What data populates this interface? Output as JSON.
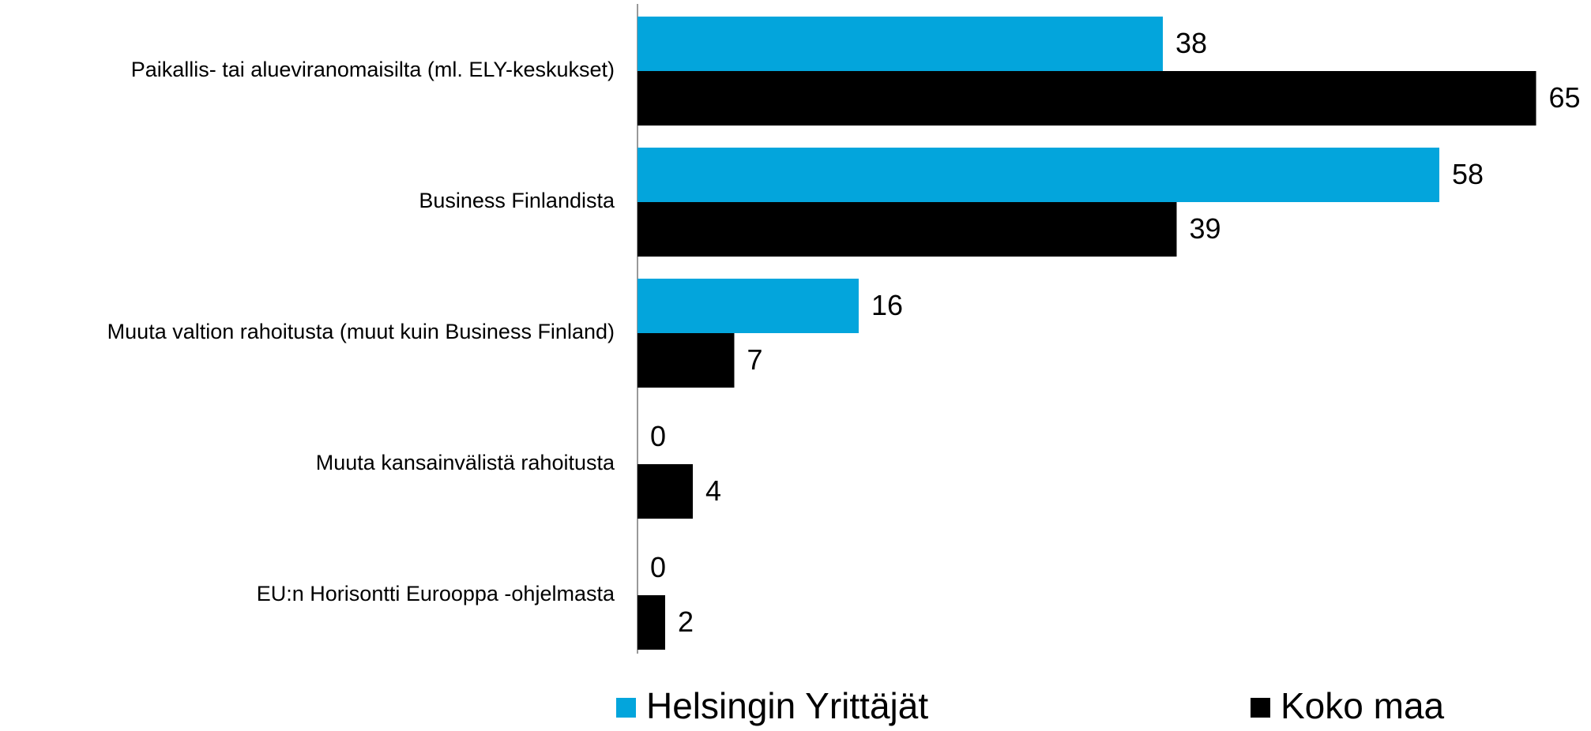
{
  "chart_data": {
    "type": "bar",
    "orientation": "horizontal",
    "categories": [
      "Paikallis- tai alueviranomaisilta (ml. ELY-keskukset)",
      "Business Finlandista",
      "Muuta valtion rahoitusta (muut kuin Business Finland)",
      "Muuta kansainvälistä rahoitusta",
      "EU:n Horisontti Eurooppa -ohjelmasta"
    ],
    "series": [
      {
        "name": "Helsingin Yrittäjät",
        "color": "#03a5dc",
        "values": [
          38,
          58,
          16,
          0,
          0
        ]
      },
      {
        "name": "Koko maa",
        "color": "#000000",
        "values": [
          65,
          39,
          7,
          4,
          2
        ]
      }
    ],
    "legend": "bottom"
  }
}
